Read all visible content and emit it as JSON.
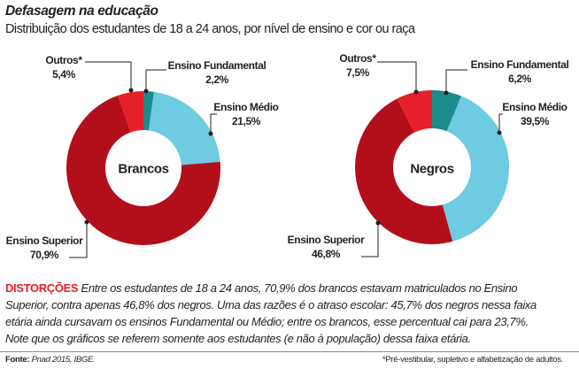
{
  "title": "Defasagem na educação",
  "subtitle": "Distribuição dos estudantes de 18 a 24 anos, por nível de ensino e cor ou raça",
  "chart_data": [
    {
      "type": "pie",
      "donut": true,
      "center_label": "Brancos",
      "categories": [
        "Ensino Fundamental",
        "Ensino Médio",
        "Ensino Superior",
        "Outros*"
      ],
      "values": [
        2.2,
        21.5,
        70.9,
        5.4
      ],
      "value_labels": [
        "2,2%",
        "21,5%",
        "70,9%",
        "5,4%"
      ],
      "colors": [
        "#1b8b8c",
        "#6ecbe1",
        "#b30f1a",
        "#e5202a"
      ]
    },
    {
      "type": "pie",
      "donut": true,
      "center_label": "Negros",
      "categories": [
        "Ensino Fundamental",
        "Ensino Médio",
        "Ensino Superior",
        "Outros*"
      ],
      "values": [
        6.2,
        39.5,
        46.8,
        7.5
      ],
      "value_labels": [
        "6,2%",
        "39,5%",
        "46,8%",
        "7,5%"
      ],
      "colors": [
        "#1b8b8c",
        "#6ecbe1",
        "#b30f1a",
        "#e5202a"
      ]
    }
  ],
  "text": {
    "highlight": "DISTORÇÕES",
    "lines": [
      " Entre os estudantes de 18 a 24 anos, 70,9% dos brancos estavam matriculados no Ensino",
      "Superior, contra apenas 46,8% dos negros. Uma das razões é o atraso escolar: 45,7% dos negros nessa faixa",
      "etária ainda cursavam os ensinos Fundamental ou Médio; entre os brancos, esse percentual cai para 23,7%.",
      "Note que os gráficos se referem somente aos estudantes (e não à população) dessa faixa etária."
    ]
  },
  "footer": {
    "source_label": "Fonte:",
    "source": " Pnad 2015, IBGE.",
    "note": "*Pré-vestibular, supletivo e alfabetização de adultos."
  }
}
